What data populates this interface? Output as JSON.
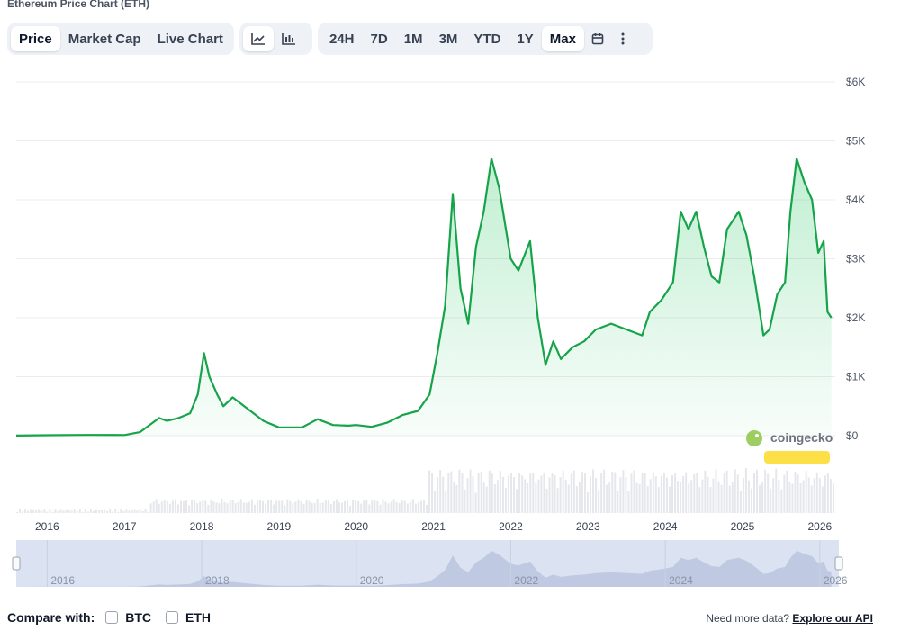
{
  "page": {
    "title": "Ethereum Price Chart (ETH)"
  },
  "toolbar": {
    "view_tabs": [
      "Price",
      "Market Cap",
      "Live Chart"
    ],
    "active_view": "Price",
    "chart_type_icons": [
      "line-chart-icon",
      "candlestick-chart-icon"
    ],
    "active_chart_type": "line-chart-icon",
    "ranges": [
      "24H",
      "7D",
      "1M",
      "3M",
      "YTD",
      "1Y",
      "Max"
    ],
    "active_range": "Max",
    "extra_icons": [
      "calendar-icon",
      "more-vertical-icon"
    ]
  },
  "watermark": {
    "brand": "coingecko"
  },
  "compare": {
    "label": "Compare with:",
    "options": [
      {
        "label": "BTC",
        "checked": false
      },
      {
        "label": "ETH",
        "checked": false
      }
    ]
  },
  "footer": {
    "api_prompt": "Need more data?",
    "api_link": "Explore our API"
  },
  "colors": {
    "line": "#16a34a",
    "fill": "#22c55e",
    "volume": "#e5e7eb",
    "navigator": "#dbe3f2",
    "navigator_area": "#b5c2dc"
  },
  "chart_data": {
    "type": "line",
    "series": [
      {
        "x": [
          2015.6,
          2016.0,
          2016.5,
          2017.0,
          2017.2,
          2017.45,
          2017.55,
          2017.7,
          2017.85,
          2017.95,
          2018.03,
          2018.1,
          2018.2,
          2018.28,
          2018.4,
          2018.6,
          2018.8,
          2019.0,
          2019.3,
          2019.5,
          2019.7,
          2019.9,
          2020.0,
          2020.2,
          2020.4,
          2020.6,
          2020.8,
          2020.95,
          2021.05,
          2021.15,
          2021.25,
          2021.35,
          2021.4,
          2021.45,
          2021.55,
          2021.65,
          2021.75,
          2021.85,
          2022.0,
          2022.1,
          2022.25,
          2022.35,
          2022.45,
          2022.55,
          2022.65,
          2022.8,
          2022.95,
          2023.1,
          2023.3,
          2023.5,
          2023.7,
          2023.8,
          2023.95,
          2024.1,
          2024.2,
          2024.3,
          2024.4,
          2024.5,
          2024.6,
          2024.7,
          2024.8,
          2024.95,
          2025.05,
          2025.15,
          2025.27,
          2025.35,
          2025.45,
          2025.55,
          2025.62,
          2025.7,
          2025.8,
          2025.9,
          2025.98,
          2026.05,
          2026.1,
          2026.15
        ],
        "y": [
          1,
          8,
          12,
          10,
          60,
          300,
          250,
          300,
          380,
          700,
          1400,
          1000,
          700,
          500,
          650,
          450,
          250,
          140,
          140,
          280,
          180,
          170,
          180,
          150,
          220,
          350,
          420,
          700,
          1400,
          2200,
          4100,
          2500,
          2200,
          1900,
          3200,
          3800,
          4700,
          4200,
          3000,
          2800,
          3300,
          2000,
          1200,
          1600,
          1300,
          1500,
          1600,
          1800,
          1900,
          1800,
          1700,
          2100,
          2300,
          2600,
          3800,
          3500,
          3800,
          3200,
          2700,
          2600,
          3500,
          3800,
          3400,
          2700,
          1700,
          1800,
          2400,
          2600,
          3800,
          4700,
          4300,
          4000,
          3100,
          3300,
          2100,
          2000
        ]
      }
    ],
    "x_ticks": [
      "2016",
      "2017",
      "2018",
      "2019",
      "2020",
      "2021",
      "2022",
      "2023",
      "2024",
      "2025",
      "2026"
    ],
    "y_ticks": [
      "$0",
      "$1K",
      "$2K",
      "$3K",
      "$4K",
      "$5K",
      "$6K"
    ],
    "ylim": [
      0,
      6000
    ],
    "xlim": [
      2015.6,
      2026.2
    ],
    "navigator_ticks": [
      "2016",
      "2018",
      "2020",
      "2022",
      "2024",
      "2026"
    ],
    "grid": true
  }
}
